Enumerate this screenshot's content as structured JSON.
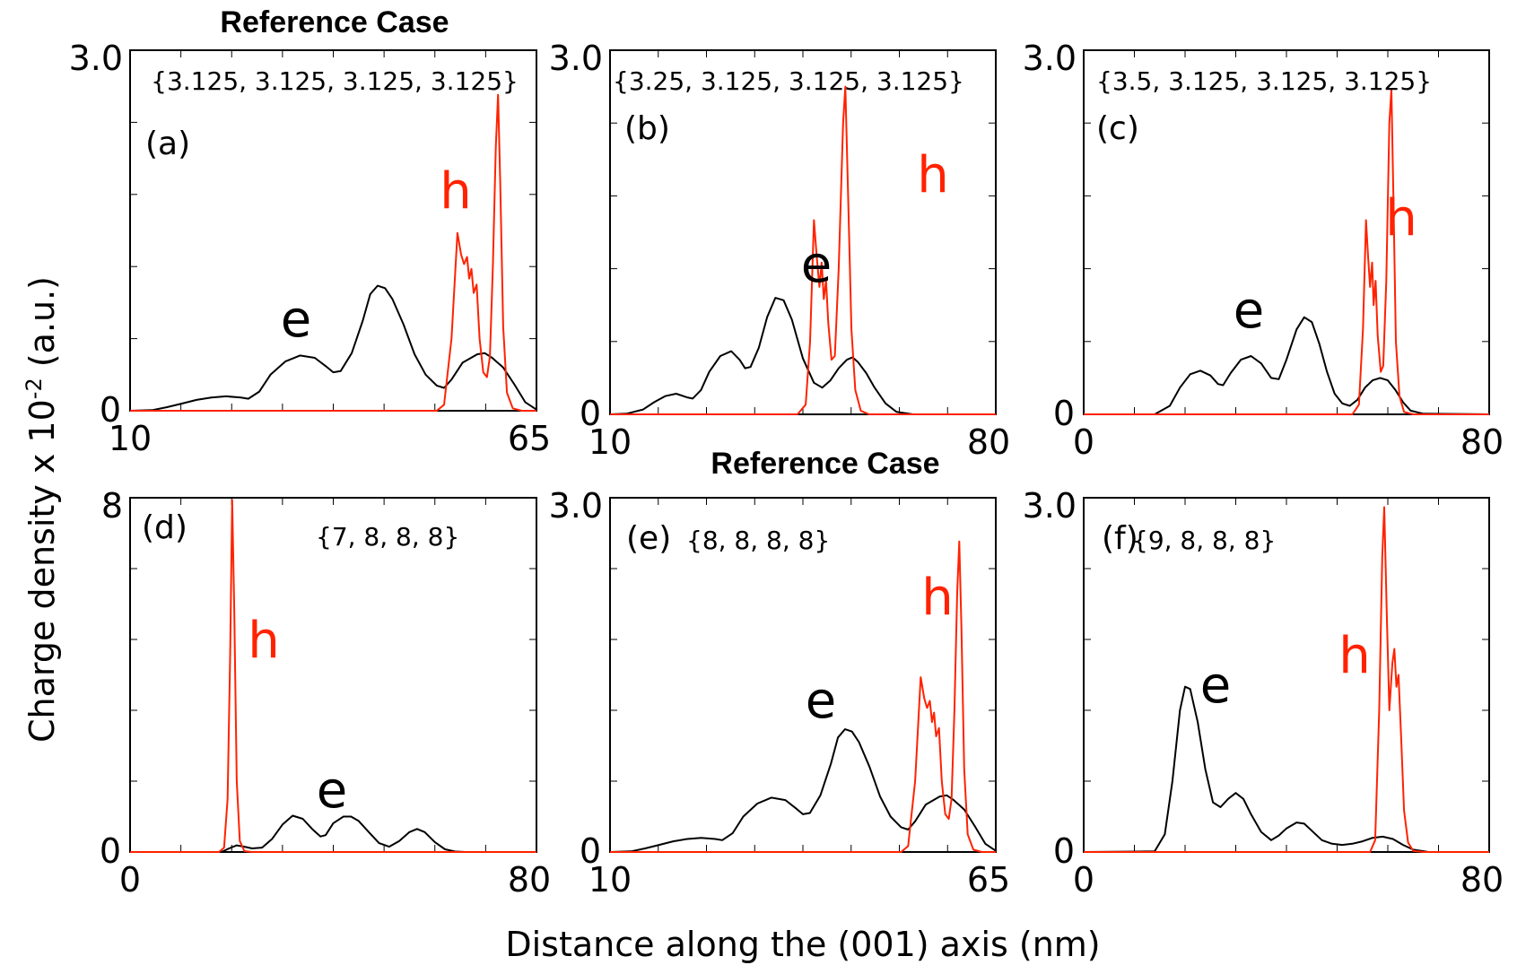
{
  "figure": {
    "ylabel_main": "Charge density  x 10",
    "ylabel_sup": "-2",
    "ylabel_unit": " (a.u.)",
    "xlabel": "Distance along the (001) axis (nm)",
    "electron_color": "#000000",
    "hole_color": "#ff2200"
  },
  "chart_data": [
    {
      "type": "line",
      "panel": "(a)",
      "title": "Reference Case",
      "params": "{3.125, 3.125, 3.125, 3.125}",
      "xlim": [
        10,
        65
      ],
      "ylim": [
        0,
        3.0
      ],
      "xtick_labels": [
        "10",
        "65"
      ],
      "ytick_labels": [
        "0",
        "3.0"
      ],
      "e_label": "e",
      "h_label": "h",
      "electron": [
        [
          10,
          0
        ],
        [
          13,
          0.005
        ],
        [
          15,
          0.03
        ],
        [
          17,
          0.06
        ],
        [
          19,
          0.09
        ],
        [
          21,
          0.11
        ],
        [
          23,
          0.12
        ],
        [
          25,
          0.11
        ],
        [
          26,
          0.1
        ],
        [
          27.5,
          0.16
        ],
        [
          29,
          0.3
        ],
        [
          31,
          0.41
        ],
        [
          33,
          0.46
        ],
        [
          35,
          0.44
        ],
        [
          36.5,
          0.37
        ],
        [
          37.5,
          0.32
        ],
        [
          38.5,
          0.33
        ],
        [
          40,
          0.48
        ],
        [
          41.5,
          0.75
        ],
        [
          42.5,
          0.97
        ],
        [
          43.5,
          1.04
        ],
        [
          44.5,
          1.02
        ],
        [
          45.5,
          0.93
        ],
        [
          47,
          0.72
        ],
        [
          48.5,
          0.47
        ],
        [
          50,
          0.3
        ],
        [
          51.5,
          0.21
        ],
        [
          52.5,
          0.19
        ],
        [
          53.5,
          0.26
        ],
        [
          55,
          0.4
        ],
        [
          57,
          0.47
        ],
        [
          58,
          0.48
        ],
        [
          59,
          0.44
        ],
        [
          60.5,
          0.36
        ],
        [
          62,
          0.22
        ],
        [
          63.5,
          0.07
        ],
        [
          65,
          0.01
        ]
      ],
      "hole": [
        [
          10,
          0
        ],
        [
          51.5,
          0
        ],
        [
          52.5,
          0.05
        ],
        [
          53.5,
          0.6
        ],
        [
          54.3,
          1.48
        ],
        [
          54.8,
          1.3
        ],
        [
          55.2,
          1.22
        ],
        [
          55.6,
          1.28
        ],
        [
          55.9,
          1.1
        ],
        [
          56.2,
          1.18
        ],
        [
          56.5,
          0.98
        ],
        [
          56.9,
          1.05
        ],
        [
          57.3,
          0.6
        ],
        [
          57.8,
          0.32
        ],
        [
          58.3,
          0.28
        ],
        [
          58.7,
          0.45
        ],
        [
          59.1,
          1.2
        ],
        [
          59.5,
          2.2
        ],
        [
          59.8,
          2.63
        ],
        [
          60.1,
          1.9
        ],
        [
          60.5,
          0.7
        ],
        [
          61,
          0.15
        ],
        [
          61.8,
          0.02
        ],
        [
          63,
          0
        ],
        [
          65,
          0
        ]
      ]
    },
    {
      "type": "line",
      "panel": "(b)",
      "title": "",
      "params": "{3.25, 3.125, 3.125, 3.125}",
      "xlim": [
        10,
        80
      ],
      "ylim": [
        0,
        3.0
      ],
      "xtick_labels": [
        "10",
        "80"
      ],
      "ytick_labels": [
        "0",
        "3.0"
      ],
      "e_label": "e",
      "h_label": "h",
      "electron": [
        [
          10,
          0
        ],
        [
          13,
          0.005
        ],
        [
          16,
          0.04
        ],
        [
          18,
          0.1
        ],
        [
          20,
          0.15
        ],
        [
          22,
          0.17
        ],
        [
          24,
          0.14
        ],
        [
          25,
          0.13
        ],
        [
          26.5,
          0.2
        ],
        [
          28,
          0.35
        ],
        [
          30,
          0.48
        ],
        [
          32,
          0.52
        ],
        [
          33.5,
          0.45
        ],
        [
          34.5,
          0.38
        ],
        [
          35.5,
          0.39
        ],
        [
          37,
          0.55
        ],
        [
          38.5,
          0.8
        ],
        [
          40,
          0.96
        ],
        [
          41.5,
          0.94
        ],
        [
          43,
          0.78
        ],
        [
          45,
          0.46
        ],
        [
          47,
          0.26
        ],
        [
          48.5,
          0.22
        ],
        [
          50,
          0.28
        ],
        [
          51.5,
          0.38
        ],
        [
          53,
          0.45
        ],
        [
          54,
          0.47
        ],
        [
          55,
          0.43
        ],
        [
          56.5,
          0.34
        ],
        [
          58,
          0.22
        ],
        [
          60,
          0.09
        ],
        [
          62,
          0.02
        ],
        [
          65,
          0
        ],
        [
          80,
          0
        ]
      ],
      "hole": [
        [
          10,
          0
        ],
        [
          44,
          0
        ],
        [
          45.5,
          0.08
        ],
        [
          46.3,
          0.6
        ],
        [
          47,
          1.6
        ],
        [
          47.5,
          1.3
        ],
        [
          48,
          1.05
        ],
        [
          48.4,
          1.25
        ],
        [
          48.8,
          0.95
        ],
        [
          49.2,
          1.1
        ],
        [
          49.6,
          0.75
        ],
        [
          50.2,
          0.45
        ],
        [
          50.8,
          0.48
        ],
        [
          51.5,
          1.2
        ],
        [
          52.3,
          2.4
        ],
        [
          52.7,
          2.7
        ],
        [
          53.2,
          1.8
        ],
        [
          53.8,
          0.7
        ],
        [
          54.5,
          0.2
        ],
        [
          55.5,
          0.03
        ],
        [
          57,
          0
        ],
        [
          80,
          0
        ]
      ]
    },
    {
      "type": "line",
      "panel": "(c)",
      "title": "",
      "params": "{3.5, 3.125, 3.125, 3.125}",
      "xlim": [
        0,
        80
      ],
      "ylim": [
        0,
        3.0
      ],
      "xtick_labels": [
        "0",
        "80"
      ],
      "ytick_labels": [
        "0",
        "3.0"
      ],
      "e_label": "e",
      "h_label": "h",
      "electron": [
        [
          0,
          0
        ],
        [
          14,
          0
        ],
        [
          17,
          0.07
        ],
        [
          19,
          0.22
        ],
        [
          21,
          0.33
        ],
        [
          23,
          0.36
        ],
        [
          25,
          0.32
        ],
        [
          26.5,
          0.25
        ],
        [
          27.5,
          0.24
        ],
        [
          29,
          0.34
        ],
        [
          31,
          0.45
        ],
        [
          33,
          0.48
        ],
        [
          35,
          0.42
        ],
        [
          37,
          0.3
        ],
        [
          38.5,
          0.29
        ],
        [
          40,
          0.45
        ],
        [
          42,
          0.7
        ],
        [
          43.5,
          0.8
        ],
        [
          45,
          0.76
        ],
        [
          46.5,
          0.58
        ],
        [
          48,
          0.35
        ],
        [
          49.5,
          0.17
        ],
        [
          51,
          0.09
        ],
        [
          52.5,
          0.07
        ],
        [
          54,
          0.12
        ],
        [
          55.5,
          0.22
        ],
        [
          57,
          0.28
        ],
        [
          58.5,
          0.3
        ],
        [
          60,
          0.28
        ],
        [
          61.5,
          0.2
        ],
        [
          63,
          0.1
        ],
        [
          64.5,
          0.03
        ],
        [
          67,
          0.005
        ],
        [
          80,
          0
        ]
      ],
      "hole": [
        [
          0,
          0
        ],
        [
          53,
          0
        ],
        [
          54.3,
          0.08
        ],
        [
          55.1,
          0.7
        ],
        [
          55.7,
          1.6
        ],
        [
          56.1,
          1.3
        ],
        [
          56.5,
          1.05
        ],
        [
          56.9,
          1.25
        ],
        [
          57.2,
          0.9
        ],
        [
          57.6,
          1.1
        ],
        [
          58,
          0.65
        ],
        [
          58.6,
          0.35
        ],
        [
          59.1,
          0.4
        ],
        [
          59.7,
          1.1
        ],
        [
          60.3,
          2.4
        ],
        [
          60.7,
          2.68
        ],
        [
          61.1,
          1.8
        ],
        [
          61.6,
          0.6
        ],
        [
          62.3,
          0.15
        ],
        [
          63.2,
          0.02
        ],
        [
          65,
          0
        ],
        [
          80,
          0
        ]
      ]
    },
    {
      "type": "line",
      "panel": "(d)",
      "title": "",
      "params": "{7, 8, 8, 8}",
      "xlim": [
        0,
        80
      ],
      "ylim": [
        0,
        8
      ],
      "xtick_labels": [
        "0",
        "80"
      ],
      "ytick_labels": [
        "0",
        "8"
      ],
      "e_label": "e",
      "h_label": "h",
      "electron": [
        [
          0,
          0
        ],
        [
          18,
          0
        ],
        [
          19.5,
          0.08
        ],
        [
          21,
          0.15
        ],
        [
          22.5,
          0.12
        ],
        [
          24,
          0.08
        ],
        [
          26,
          0.1
        ],
        [
          28,
          0.3
        ],
        [
          30,
          0.62
        ],
        [
          32,
          0.82
        ],
        [
          34,
          0.75
        ],
        [
          36,
          0.5
        ],
        [
          37.5,
          0.35
        ],
        [
          38.5,
          0.38
        ],
        [
          40,
          0.65
        ],
        [
          42,
          0.8
        ],
        [
          43.5,
          0.8
        ],
        [
          45,
          0.7
        ],
        [
          47,
          0.45
        ],
        [
          49,
          0.2
        ],
        [
          51,
          0.12
        ],
        [
          53,
          0.25
        ],
        [
          55,
          0.45
        ],
        [
          56.5,
          0.52
        ],
        [
          58,
          0.45
        ],
        [
          60,
          0.22
        ],
        [
          62,
          0.06
        ],
        [
          64,
          0.01
        ],
        [
          66,
          0
        ],
        [
          80,
          0
        ]
      ],
      "hole": [
        [
          0,
          0
        ],
        [
          17.5,
          0
        ],
        [
          18.5,
          0.1
        ],
        [
          19.2,
          1.2
        ],
        [
          19.7,
          4.5
        ],
        [
          20.1,
          7.95
        ],
        [
          20.5,
          5.5
        ],
        [
          21,
          1.6
        ],
        [
          21.6,
          0.25
        ],
        [
          22.5,
          0.02
        ],
        [
          24,
          0
        ],
        [
          80,
          0
        ]
      ]
    },
    {
      "type": "line",
      "panel": "(e)",
      "title": "Reference Case",
      "params": "{8, 8, 8, 8}",
      "xlim": [
        10,
        65
      ],
      "ylim": [
        0,
        3.0
      ],
      "xtick_labels": [
        "10",
        "65"
      ],
      "ytick_labels": [
        "0",
        "3.0"
      ],
      "e_label": "e",
      "h_label": "h",
      "electron": [
        [
          10,
          0
        ],
        [
          13,
          0.005
        ],
        [
          15,
          0.03
        ],
        [
          17,
          0.06
        ],
        [
          19,
          0.09
        ],
        [
          21,
          0.11
        ],
        [
          23,
          0.12
        ],
        [
          25,
          0.11
        ],
        [
          26,
          0.1
        ],
        [
          27.5,
          0.16
        ],
        [
          29,
          0.3
        ],
        [
          31,
          0.41
        ],
        [
          33,
          0.46
        ],
        [
          35,
          0.44
        ],
        [
          36.5,
          0.37
        ],
        [
          37.5,
          0.32
        ],
        [
          38.5,
          0.33
        ],
        [
          40,
          0.48
        ],
        [
          41.5,
          0.75
        ],
        [
          42.5,
          0.97
        ],
        [
          43.5,
          1.04
        ],
        [
          44.5,
          1.02
        ],
        [
          45.5,
          0.93
        ],
        [
          47,
          0.72
        ],
        [
          48.5,
          0.47
        ],
        [
          50,
          0.3
        ],
        [
          51.5,
          0.21
        ],
        [
          52.5,
          0.19
        ],
        [
          53.5,
          0.26
        ],
        [
          55,
          0.4
        ],
        [
          57,
          0.47
        ],
        [
          58,
          0.48
        ],
        [
          59,
          0.44
        ],
        [
          60.5,
          0.36
        ],
        [
          62,
          0.22
        ],
        [
          63.5,
          0.07
        ],
        [
          65,
          0.01
        ]
      ],
      "hole": [
        [
          10,
          0
        ],
        [
          51.5,
          0
        ],
        [
          52.5,
          0.05
        ],
        [
          53.5,
          0.6
        ],
        [
          54.3,
          1.48
        ],
        [
          54.8,
          1.3
        ],
        [
          55.2,
          1.22
        ],
        [
          55.6,
          1.28
        ],
        [
          55.9,
          1.1
        ],
        [
          56.2,
          1.18
        ],
        [
          56.5,
          0.98
        ],
        [
          56.9,
          1.05
        ],
        [
          57.3,
          0.6
        ],
        [
          57.8,
          0.32
        ],
        [
          58.3,
          0.28
        ],
        [
          58.7,
          0.45
        ],
        [
          59.1,
          1.2
        ],
        [
          59.5,
          2.2
        ],
        [
          59.8,
          2.63
        ],
        [
          60.1,
          1.9
        ],
        [
          60.5,
          0.7
        ],
        [
          61,
          0.15
        ],
        [
          61.8,
          0.02
        ],
        [
          63,
          0
        ],
        [
          65,
          0
        ]
      ]
    },
    {
      "type": "line",
      "panel": "(f)",
      "title": "",
      "params": "{9, 8, 8, 8}",
      "xlim": [
        0,
        80
      ],
      "ylim": [
        0,
        3.0
      ],
      "xtick_labels": [
        "0",
        "80"
      ],
      "ytick_labels": [
        "0",
        "3.0"
      ],
      "e_label": "e",
      "h_label": "h",
      "electron": [
        [
          0,
          0
        ],
        [
          14,
          0.005
        ],
        [
          16,
          0.15
        ],
        [
          17.5,
          0.6
        ],
        [
          19,
          1.2
        ],
        [
          20,
          1.4
        ],
        [
          21,
          1.38
        ],
        [
          22.5,
          1.1
        ],
        [
          24,
          0.7
        ],
        [
          25.5,
          0.42
        ],
        [
          27,
          0.38
        ],
        [
          28.5,
          0.45
        ],
        [
          30,
          0.5
        ],
        [
          31.5,
          0.45
        ],
        [
          33,
          0.32
        ],
        [
          35,
          0.17
        ],
        [
          37,
          0.1
        ],
        [
          38.5,
          0.14
        ],
        [
          40,
          0.2
        ],
        [
          42,
          0.25
        ],
        [
          43.5,
          0.24
        ],
        [
          45,
          0.18
        ],
        [
          47,
          0.1
        ],
        [
          49,
          0.07
        ],
        [
          51,
          0.06
        ],
        [
          53,
          0.07
        ],
        [
          55,
          0.09
        ],
        [
          57,
          0.12
        ],
        [
          59,
          0.13
        ],
        [
          61,
          0.11
        ],
        [
          63,
          0.06
        ],
        [
          65,
          0.02
        ],
        [
          68,
          0
        ],
        [
          80,
          0
        ]
      ],
      "hole": [
        [
          0,
          0
        ],
        [
          56.5,
          0
        ],
        [
          57.5,
          0.1
        ],
        [
          58.3,
          1.2
        ],
        [
          58.9,
          2.5
        ],
        [
          59.3,
          2.92
        ],
        [
          59.8,
          2.0
        ],
        [
          60.3,
          1.2
        ],
        [
          60.9,
          1.6
        ],
        [
          61.3,
          1.72
        ],
        [
          61.7,
          1.4
        ],
        [
          62.1,
          1.5
        ],
        [
          62.6,
          1.0
        ],
        [
          63.2,
          0.35
        ],
        [
          64,
          0.08
        ],
        [
          65,
          0.01
        ],
        [
          67,
          0
        ],
        [
          80,
          0
        ]
      ]
    }
  ]
}
